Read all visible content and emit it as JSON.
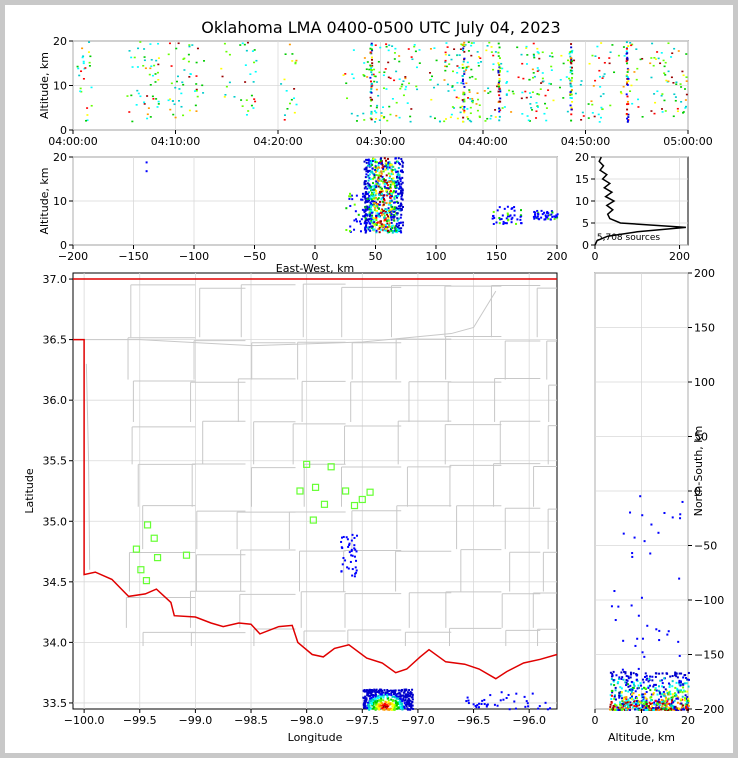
{
  "title": "Oklahoma LMA 0400-0500 UTC July 04, 2023",
  "chart_data": [
    {
      "type": "scatter",
      "panel": "altitude-time",
      "ylabel": "Altitude, km",
      "ylim": [
        0,
        20
      ],
      "yticks": [
        "0",
        "10",
        "20"
      ],
      "xticks": [
        "04:00:00",
        "04:10:00",
        "04:20:00",
        "04:30:00",
        "04:40:00",
        "04:50:00",
        "05:00:00"
      ],
      "xlim_min": [
        0,
        60
      ],
      "columns_min": [
        1,
        6,
        7.5,
        10,
        12,
        15,
        17,
        21,
        27,
        29,
        30,
        31.5,
        33,
        35.5,
        37,
        38,
        39,
        40,
        41.5,
        43,
        44.5,
        46,
        48,
        49,
        51,
        53,
        55,
        57,
        58,
        59
      ]
    },
    {
      "type": "scatter",
      "panel": "altitude-eastwest",
      "xlabel": "East-West, km",
      "ylabel": "Altitude, km",
      "xlim": [
        -200,
        200
      ],
      "ylim": [
        0,
        20
      ],
      "xticks": [
        "−200",
        "−150",
        "−100",
        "−50",
        "0",
        "50",
        "100",
        "150",
        "200"
      ],
      "yticks": [
        "0",
        "10",
        "20"
      ],
      "clusters": [
        {
          "x": [
            40,
            72
          ],
          "y": [
            3,
            20
          ],
          "weight": "dense"
        },
        {
          "x": [
            25,
            45
          ],
          "y": [
            3,
            12
          ],
          "weight": "sparse"
        },
        {
          "x": [
            145,
            170
          ],
          "y": [
            5,
            9
          ],
          "weight": "sparse"
        },
        {
          "x": [
            180,
            200
          ],
          "y": [
            6,
            8
          ],
          "weight": "sparse"
        }
      ]
    },
    {
      "type": "line",
      "panel": "altitude-histogram",
      "xlim": [
        0,
        220
      ],
      "ylim": [
        0,
        20
      ],
      "xticks": [
        "0",
        "200"
      ],
      "yticks": [
        "0",
        "5",
        "10",
        "15",
        "20"
      ],
      "annotation": "5,708 sources",
      "counts": [
        [
          0,
          0
        ],
        [
          5,
          1
        ],
        [
          30,
          2
        ],
        [
          100,
          3
        ],
        [
          215,
          4
        ],
        [
          60,
          5
        ],
        [
          35,
          6
        ],
        [
          30,
          7
        ],
        [
          42,
          8
        ],
        [
          28,
          9
        ],
        [
          45,
          10
        ],
        [
          25,
          11
        ],
        [
          40,
          12
        ],
        [
          22,
          13
        ],
        [
          35,
          14
        ],
        [
          18,
          15
        ],
        [
          28,
          16
        ],
        [
          12,
          17
        ],
        [
          20,
          18
        ],
        [
          10,
          19
        ],
        [
          15,
          20
        ]
      ]
    },
    {
      "type": "scatter",
      "panel": "plan-view",
      "xlabel": "Longitude",
      "ylabel": "Latitude",
      "xlim": [
        -100.1,
        -95.75
      ],
      "ylim": [
        33.45,
        37.05
      ],
      "xticks": [
        "−100.0",
        "−99.5",
        "−99.0",
        "−98.5",
        "−98.0",
        "−97.5",
        "−97.0",
        "−96.5",
        "−96.0"
      ],
      "yticks": [
        "33.5",
        "34.0",
        "34.5",
        "35.0",
        "35.5",
        "36.0",
        "36.5",
        "37.0"
      ],
      "stations": [
        [
          -98.0,
          35.47
        ],
        [
          -97.78,
          35.45
        ],
        [
          -97.92,
          35.28
        ],
        [
          -98.06,
          35.25
        ],
        [
          -97.65,
          35.25
        ],
        [
          -97.84,
          35.14
        ],
        [
          -97.57,
          35.13
        ],
        [
          -97.43,
          35.24
        ],
        [
          -97.5,
          35.18
        ],
        [
          -97.94,
          35.01
        ],
        [
          -99.43,
          34.97
        ],
        [
          -99.37,
          34.86
        ],
        [
          -99.53,
          34.77
        ],
        [
          -99.08,
          34.72
        ],
        [
          -99.34,
          34.7
        ],
        [
          -99.49,
          34.6
        ],
        [
          -99.44,
          34.51
        ]
      ],
      "border_lon_lat": [
        [
          -100.0,
          36.5
        ],
        [
          -100.0,
          34.56
        ],
        [
          -99.9,
          34.58
        ],
        [
          -99.75,
          34.52
        ],
        [
          -99.6,
          34.38
        ],
        [
          -99.45,
          34.4
        ],
        [
          -99.35,
          34.44
        ],
        [
          -99.22,
          34.33
        ],
        [
          -99.19,
          34.22
        ],
        [
          -99.0,
          34.21
        ],
        [
          -98.86,
          34.16
        ],
        [
          -98.75,
          34.13
        ],
        [
          -98.61,
          34.16
        ],
        [
          -98.5,
          34.15
        ],
        [
          -98.42,
          34.07
        ],
        [
          -98.25,
          34.13
        ],
        [
          -98.13,
          34.14
        ],
        [
          -98.08,
          34.0
        ],
        [
          -97.95,
          33.9
        ],
        [
          -97.85,
          33.88
        ],
        [
          -97.75,
          33.95
        ],
        [
          -97.62,
          33.98
        ],
        [
          -97.46,
          33.87
        ],
        [
          -97.32,
          33.83
        ],
        [
          -97.2,
          33.75
        ],
        [
          -97.1,
          33.78
        ],
        [
          -96.98,
          33.88
        ],
        [
          -96.9,
          33.94
        ],
        [
          -96.75,
          33.84
        ],
        [
          -96.58,
          33.82
        ],
        [
          -96.45,
          33.78
        ],
        [
          -96.3,
          33.7
        ],
        [
          -96.2,
          33.76
        ],
        [
          -96.05,
          33.83
        ],
        [
          -95.9,
          33.86
        ],
        [
          -95.75,
          33.9
        ]
      ],
      "clusters": [
        {
          "lon": [
            -97.5,
            -97.05
          ],
          "lat": [
            33.45,
            33.62
          ],
          "weight": "dense"
        },
        {
          "lon": [
            -97.7,
            -97.55
          ],
          "lat": [
            34.55,
            34.9
          ],
          "weight": "sparse"
        },
        {
          "lon": [
            -96.6,
            -95.8
          ],
          "lat": [
            33.45,
            33.6
          ],
          "weight": "sparse"
        }
      ]
    },
    {
      "type": "scatter",
      "panel": "northsouth-altitude",
      "xlabel": "Altitude, km",
      "ylabel": "North-South, km",
      "xlim": [
        0,
        20
      ],
      "ylim": [
        -200,
        200
      ],
      "xticks": [
        "0",
        "10",
        "20"
      ],
      "yticks": [
        "−200",
        "−150",
        "−100",
        "−50",
        "0",
        "50",
        "100",
        "150",
        "200"
      ],
      "clusters": [
        {
          "alt": [
            3,
            20
          ],
          "ns": [
            -200,
            -165
          ],
          "weight": "dense"
        },
        {
          "alt": [
            2,
            20
          ],
          "ns": [
            -165,
            0
          ],
          "weight": "sparse"
        }
      ]
    }
  ]
}
